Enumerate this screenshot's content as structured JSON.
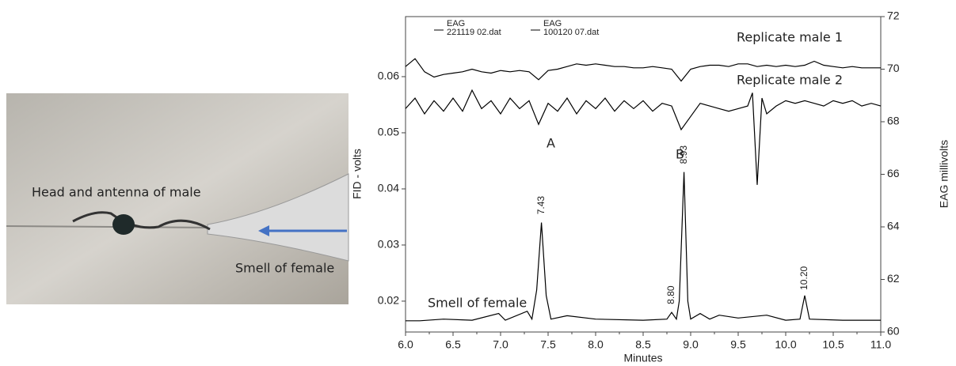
{
  "photo": {
    "labels": [
      "Head and antenna of male",
      "Smell of female"
    ]
  },
  "chart_data": {
    "type": "line",
    "xlabel": "Minutes",
    "ylabel": "FID - volts",
    "y2label": "EAG millivolts",
    "annotations": [
      "Replicate male 1",
      "Replicate male 2",
      "A",
      "B",
      "Smell of female"
    ],
    "xlim": [
      6.0,
      11.0
    ],
    "xticks": [
      {
        "value": 6,
        "label": "6.0"
      },
      6.5,
      {
        "value": 7,
        "label": "7.0"
      },
      7.5,
      {
        "value": 8,
        "label": "8.0"
      },
      8.5,
      {
        "value": 9,
        "label": "9.0"
      },
      9.5,
      {
        "value": 10,
        "label": "10.0"
      },
      10.5,
      {
        "value": 11,
        "label": "11.0"
      }
    ],
    "ylim": [
      0.0145,
      0.0707
    ],
    "yticks": [
      0.02,
      0.03,
      0.04,
      0.05,
      0.06
    ],
    "y2lim": [
      60,
      72
    ],
    "y2ticks": [
      60,
      62,
      64,
      66,
      68,
      70,
      72
    ],
    "peak_labels": [
      {
        "value": 7.43,
        "label": "7.43"
      },
      {
        "value": 8.8,
        "label": "8.80"
      },
      {
        "value": 8.93,
        "label": "8.93"
      },
      {
        "value": 10.2,
        "label": "10.20"
      }
    ],
    "series": [
      {
        "name": "EAG 221119 02.dat",
        "color": "#000000",
        "axis": "y2",
        "x": [
          6.0,
          6.1,
          6.2,
          6.3,
          6.4,
          6.5,
          6.6,
          6.7,
          6.8,
          6.9,
          7.0,
          7.1,
          7.2,
          7.3,
          7.4,
          7.5,
          7.6,
          7.7,
          7.8,
          7.9,
          8.0,
          8.1,
          8.2,
          8.3,
          8.4,
          8.5,
          8.6,
          8.7,
          8.8,
          8.9,
          9.0,
          9.1,
          9.2,
          9.3,
          9.4,
          9.5,
          9.6,
          9.7,
          9.8,
          9.9,
          10.0,
          10.1,
          10.2,
          10.3,
          10.4,
          10.5,
          10.6,
          10.7,
          10.8,
          10.9,
          11.0
        ],
        "values": [
          70.1,
          70.4,
          69.9,
          69.7,
          69.8,
          69.85,
          69.9,
          70.0,
          69.9,
          69.85,
          69.95,
          69.9,
          69.95,
          69.9,
          69.6,
          69.95,
          70.0,
          70.1,
          70.2,
          70.15,
          70.2,
          70.15,
          70.1,
          70.1,
          70.05,
          70.05,
          70.1,
          70.05,
          70.0,
          69.55,
          70.0,
          70.1,
          70.15,
          70.15,
          70.1,
          70.2,
          70.2,
          70.1,
          70.15,
          70.1,
          70.15,
          70.1,
          70.15,
          70.3,
          70.15,
          70.1,
          70.05,
          70.1,
          70.05,
          70.05,
          70.05
        ]
      },
      {
        "name": "EAG 100120 07.dat",
        "color": "#000000",
        "axis": "y2",
        "x": [
          6.0,
          6.1,
          6.2,
          6.3,
          6.4,
          6.5,
          6.6,
          6.7,
          6.8,
          6.9,
          7.0,
          7.1,
          7.2,
          7.3,
          7.4,
          7.5,
          7.6,
          7.7,
          7.8,
          7.9,
          8.0,
          8.1,
          8.2,
          8.3,
          8.4,
          8.5,
          8.6,
          8.7,
          8.8,
          8.9,
          9.0,
          9.1,
          9.2,
          9.3,
          9.4,
          9.5,
          9.6,
          9.65,
          9.7,
          9.75,
          9.8,
          9.9,
          10.0,
          10.1,
          10.2,
          10.3,
          10.4,
          10.5,
          10.6,
          10.7,
          10.8,
          10.9,
          11.0
        ],
        "values": [
          68.5,
          68.9,
          68.3,
          68.8,
          68.4,
          68.9,
          68.4,
          69.2,
          68.5,
          68.8,
          68.3,
          68.9,
          68.5,
          68.8,
          67.9,
          68.7,
          68.4,
          68.9,
          68.3,
          68.8,
          68.5,
          68.9,
          68.4,
          68.8,
          68.5,
          68.8,
          68.4,
          68.7,
          68.6,
          67.7,
          68.2,
          68.7,
          68.6,
          68.5,
          68.4,
          68.5,
          68.6,
          69.1,
          65.6,
          68.9,
          68.3,
          68.6,
          68.8,
          68.7,
          68.8,
          68.7,
          68.6,
          68.8,
          68.7,
          68.8,
          68.6,
          68.7,
          68.6
        ]
      },
      {
        "color": "#000000",
        "x": [
          6.0,
          6.15,
          6.4,
          6.7,
          6.98,
          7.05,
          7.28,
          7.33,
          7.38,
          7.43,
          7.48,
          7.53,
          7.7,
          8.0,
          8.5,
          8.75,
          8.8,
          8.85,
          8.88,
          8.93,
          8.97,
          9.0,
          9.1,
          9.2,
          9.3,
          9.5,
          9.8,
          10.0,
          10.15,
          10.2,
          10.25,
          10.6,
          11.0
        ],
        "values": [
          0.0165,
          0.0165,
          0.0168,
          0.0166,
          0.0178,
          0.0166,
          0.0182,
          0.0168,
          0.022,
          0.034,
          0.021,
          0.0168,
          0.0174,
          0.0168,
          0.0166,
          0.0168,
          0.018,
          0.0168,
          0.02,
          0.043,
          0.02,
          0.0168,
          0.0178,
          0.0168,
          0.0175,
          0.017,
          0.0175,
          0.0166,
          0.0168,
          0.021,
          0.0168,
          0.0166,
          0.0166
        ]
      }
    ]
  }
}
